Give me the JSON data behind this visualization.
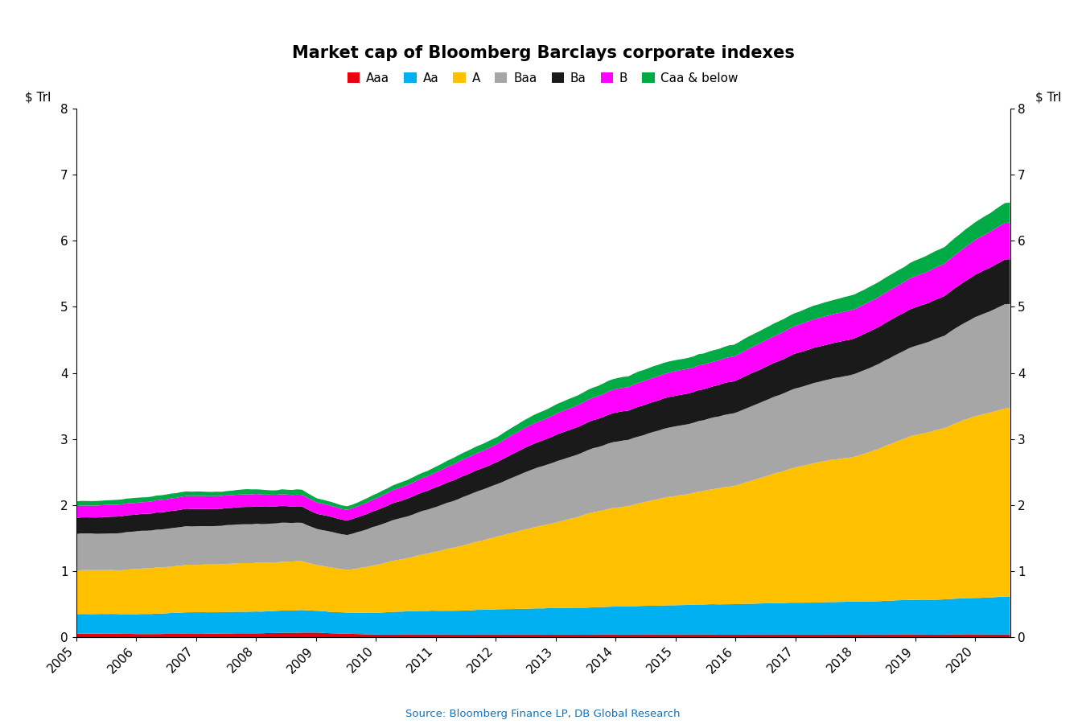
{
  "title": "Market cap of Bloomberg Barclays corporate indexes",
  "ylabel_left": "$ Trl",
  "ylabel_right": "$ Trl",
  "source": "Source: Bloomberg Finance LP, DB Global Research",
  "ylim": [
    0,
    8
  ],
  "yticks": [
    0,
    1,
    2,
    3,
    4,
    5,
    6,
    7,
    8
  ],
  "series_labels": [
    "Aaa",
    "Aa",
    "A",
    "Baa",
    "Ba",
    "B",
    "Caa & below"
  ],
  "series_colors": [
    "#e8000d",
    "#00b0f0",
    "#ffc000",
    "#a6a6a6",
    "#1a1a1a",
    "#ff00ff",
    "#00aa44"
  ],
  "background_color": "#ffffff",
  "legend_fontsize": 11,
  "title_fontsize": 15,
  "axis_fontsize": 11,
  "tick_fontsize": 11,
  "keypoints_t": [
    2005.0,
    2005.5,
    2006.0,
    2007.0,
    2008.0,
    2008.75,
    2009.0,
    2009.5,
    2010.0,
    2011.0,
    2012.0,
    2013.0,
    2014.0,
    2015.0,
    2016.0,
    2017.0,
    2017.5,
    2018.0,
    2019.0,
    2019.5,
    2020.0,
    2020.5
  ],
  "keypoints_aaa": [
    0.05,
    0.05,
    0.05,
    0.05,
    0.06,
    0.07,
    0.07,
    0.05,
    0.04,
    0.04,
    0.04,
    0.04,
    0.04,
    0.04,
    0.04,
    0.04,
    0.04,
    0.04,
    0.04,
    0.04,
    0.04,
    0.04
  ],
  "keypoints_aa": [
    0.3,
    0.3,
    0.3,
    0.32,
    0.33,
    0.34,
    0.33,
    0.32,
    0.33,
    0.36,
    0.38,
    0.4,
    0.42,
    0.44,
    0.46,
    0.48,
    0.49,
    0.5,
    0.52,
    0.53,
    0.55,
    0.57
  ],
  "keypoints_a": [
    0.65,
    0.67,
    0.68,
    0.72,
    0.74,
    0.73,
    0.68,
    0.65,
    0.72,
    0.9,
    1.1,
    1.3,
    1.5,
    1.65,
    1.8,
    2.05,
    2.15,
    2.2,
    2.5,
    2.6,
    2.75,
    2.85
  ],
  "keypoints_baa": [
    0.55,
    0.56,
    0.57,
    0.58,
    0.59,
    0.58,
    0.55,
    0.52,
    0.58,
    0.68,
    0.8,
    0.92,
    1.0,
    1.05,
    1.1,
    1.2,
    1.22,
    1.25,
    1.35,
    1.4,
    1.5,
    1.58
  ],
  "keypoints_ba": [
    0.25,
    0.25,
    0.25,
    0.26,
    0.26,
    0.25,
    0.23,
    0.22,
    0.24,
    0.29,
    0.34,
    0.4,
    0.44,
    0.46,
    0.48,
    0.52,
    0.53,
    0.54,
    0.58,
    0.6,
    0.64,
    0.68
  ],
  "keypoints_b": [
    0.18,
    0.18,
    0.18,
    0.19,
    0.19,
    0.18,
    0.17,
    0.16,
    0.18,
    0.22,
    0.27,
    0.32,
    0.35,
    0.37,
    0.38,
    0.42,
    0.43,
    0.44,
    0.47,
    0.49,
    0.52,
    0.55
  ],
  "keypoints_caa": [
    0.07,
    0.07,
    0.07,
    0.07,
    0.07,
    0.07,
    0.06,
    0.06,
    0.07,
    0.09,
    0.11,
    0.14,
    0.16,
    0.17,
    0.18,
    0.2,
    0.21,
    0.22,
    0.24,
    0.25,
    0.27,
    0.3
  ]
}
